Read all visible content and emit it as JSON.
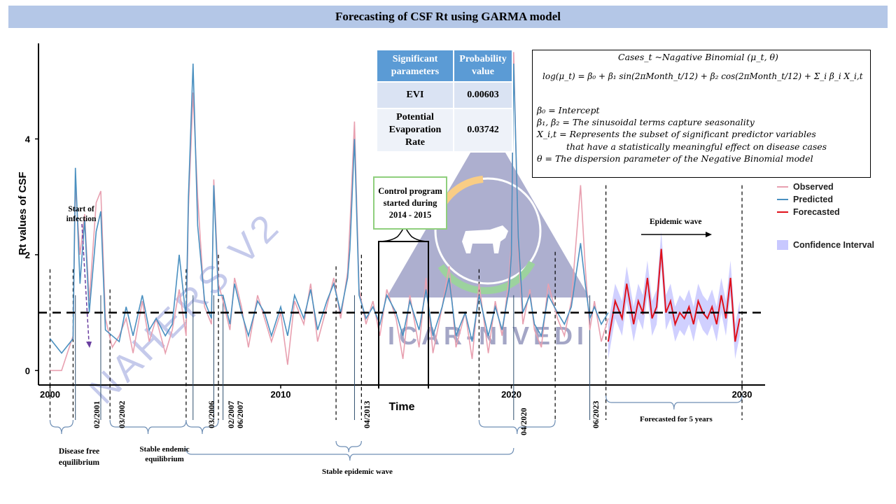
{
  "title": "Forecasting of CSF Rt using GARMA model",
  "table": {
    "headers": [
      "Significant parameters",
      "Probability value"
    ],
    "rows": [
      {
        "param": "EVI",
        "p": "0.00603"
      },
      {
        "param": "Potential Evaporation Rate",
        "p": "0.03742"
      }
    ]
  },
  "formula": {
    "line1": "Cases_t ~Nagative Binomial (μ_t, θ)",
    "line2": "log(μ_t) = β₀ + β₁ sin(2πMonth_t/12) + β₂ cos(2πMonth_t/12) + Σ_i β_i X_i,t",
    "def1": "β₀ = Intercept",
    "def2": "β₁, β₂ = The sinusoidal terms capture seasonality",
    "def3a": "X_i,t = Represents the subset of significant predictor variables",
    "def3b": "that have a statistically meaningful effect on disease cases",
    "def4": "θ = The dispersion parameter of the Negative Binomial model"
  },
  "legend": {
    "observed": "Observed",
    "predicted": "Predicted",
    "forecasted": "Forecasted",
    "ci": "Confidence Interval"
  },
  "colors": {
    "observed": "#e8a0b0",
    "predicted": "#4a90c0",
    "forecasted": "#e0101a",
    "ci": "#c8c8ff",
    "title_bg": "#b4c7e7",
    "table_header": "#5b9bd5"
  },
  "annotations": {
    "control_program": "Control program started during 2014 - 2015",
    "start_infection": "Start of infection",
    "epidemic_wave": "Epidemic wave",
    "disease_free": "Disease free equilibrium",
    "stable_endemic": "Stable endemic equilibrium",
    "stable_epidemic": "Stable epidemic wave",
    "forecast_5y": "Forecasted for 5 years",
    "dates": [
      "02/2001",
      "03/2002",
      "03/2006",
      "02/2007",
      "06/2007",
      "04/2013",
      "04/2020",
      "06/2023"
    ]
  },
  "watermark": "NAHERS V2",
  "logo_text": "ICAR-NIVEDI",
  "chart_data": {
    "type": "line",
    "xlabel": "Time",
    "ylabel": "Rt values of CSF",
    "xlim": [
      1999.5,
      2031
    ],
    "ylim": [
      -0.25,
      5.65
    ],
    "x_ticks": [
      2000,
      2010,
      2020,
      2030
    ],
    "y_ticks": [
      0,
      2,
      4
    ],
    "reference_line": 1.0,
    "series": [
      {
        "name": "Observed",
        "x": [
          2000.0,
          2000.5,
          2001.0,
          2001.1,
          2001.3,
          2001.5,
          2001.7,
          2002.0,
          2002.2,
          2002.4,
          2002.7,
          2003.0,
          2003.3,
          2003.6,
          2004.0,
          2004.3,
          2004.6,
          2005.0,
          2005.3,
          2005.6,
          2005.9,
          2006.0,
          2006.2,
          2006.4,
          2006.7,
          2007.0,
          2007.1,
          2007.3,
          2007.5,
          2007.8,
          2008.0,
          2008.3,
          2008.6,
          2009.0,
          2009.3,
          2009.6,
          2010.0,
          2010.3,
          2010.6,
          2011.0,
          2011.3,
          2011.6,
          2012.0,
          2012.3,
          2012.6,
          2012.9,
          2013.0,
          2013.2,
          2013.4,
          2013.7,
          2014.0,
          2014.3,
          2014.6,
          2015.0,
          2015.3,
          2015.6,
          2016.0,
          2016.3,
          2016.6,
          2017.0,
          2017.3,
          2017.6,
          2018.0,
          2018.3,
          2018.6,
          2019.0,
          2019.3,
          2019.6,
          2019.9,
          2020.0,
          2020.1,
          2020.3,
          2020.5,
          2020.8,
          2021.0,
          2021.3,
          2021.6,
          2022.0,
          2022.3,
          2022.6,
          2023.0,
          2023.2,
          2023.4,
          2023.6,
          2023.9,
          2024.2
        ],
        "values": [
          0.0,
          0.0,
          0.6,
          3.2,
          2.0,
          2.7,
          1.2,
          2.9,
          3.1,
          0.9,
          0.4,
          0.6,
          0.9,
          0.3,
          1.2,
          0.5,
          0.9,
          0.3,
          0.7,
          1.4,
          0.6,
          2.8,
          4.8,
          3.0,
          1.1,
          0.8,
          3.3,
          1.5,
          1.2,
          0.7,
          1.6,
          1.1,
          0.4,
          1.3,
          0.9,
          0.5,
          1.0,
          0.1,
          1.2,
          0.8,
          1.5,
          0.5,
          1.1,
          1.6,
          0.9,
          1.7,
          2.5,
          4.3,
          1.4,
          0.8,
          1.2,
          0.6,
          1.4,
          0.9,
          0.2,
          1.3,
          0.4,
          1.6,
          0.3,
          1.1,
          1.8,
          0.4,
          1.0,
          0.2,
          1.5,
          0.3,
          1.2,
          0.6,
          1.6,
          2.2,
          5.5,
          2.1,
          0.8,
          1.4,
          0.7,
          0.4,
          1.5,
          0.9,
          0.6,
          1.2,
          3.2,
          1.8,
          0.7,
          1.2,
          0.5,
          0.9
        ]
      },
      {
        "name": "Predicted",
        "x": [
          2000.0,
          2000.5,
          2001.0,
          2001.1,
          2001.3,
          2001.5,
          2001.7,
          2002.0,
          2002.2,
          2002.4,
          2002.7,
          2003.0,
          2003.3,
          2003.6,
          2004.0,
          2004.3,
          2004.6,
          2005.0,
          2005.3,
          2005.6,
          2005.9,
          2006.0,
          2006.2,
          2006.4,
          2006.7,
          2007.0,
          2007.1,
          2007.3,
          2007.5,
          2007.8,
          2008.0,
          2008.3,
          2008.6,
          2009.0,
          2009.3,
          2009.6,
          2010.0,
          2010.3,
          2010.6,
          2011.0,
          2011.3,
          2011.6,
          2012.0,
          2012.3,
          2012.6,
          2012.9,
          2013.0,
          2013.2,
          2013.4,
          2013.7,
          2014.0,
          2014.3,
          2014.6,
          2015.0,
          2015.3,
          2015.6,
          2016.0,
          2016.3,
          2016.6,
          2017.0,
          2017.3,
          2017.6,
          2018.0,
          2018.3,
          2018.6,
          2019.0,
          2019.3,
          2019.6,
          2019.9,
          2020.0,
          2020.1,
          2020.3,
          2020.5,
          2020.8,
          2021.0,
          2021.3,
          2021.6,
          2022.0,
          2022.3,
          2022.6,
          2023.0,
          2023.2,
          2023.4,
          2023.6,
          2023.9,
          2024.2
        ],
        "values": [
          0.55,
          0.3,
          0.55,
          3.5,
          1.5,
          2.6,
          1.0,
          2.4,
          2.75,
          0.7,
          0.6,
          0.5,
          1.1,
          0.6,
          1.3,
          0.7,
          0.9,
          0.6,
          0.8,
          2.0,
          0.9,
          3.0,
          5.3,
          2.5,
          1.2,
          0.9,
          3.2,
          1.3,
          1.3,
          0.8,
          1.5,
          1.0,
          0.6,
          1.2,
          1.0,
          0.6,
          1.1,
          0.6,
          1.3,
          0.9,
          1.4,
          0.7,
          1.2,
          1.5,
          1.0,
          1.6,
          2.1,
          4.0,
          1.3,
          0.9,
          1.1,
          0.8,
          1.3,
          1.0,
          0.6,
          1.2,
          0.7,
          1.4,
          0.6,
          1.1,
          1.6,
          0.6,
          1.0,
          0.5,
          1.3,
          0.6,
          1.1,
          0.7,
          1.4,
          2.0,
          5.3,
          2.3,
          1.0,
          1.3,
          0.8,
          0.6,
          1.3,
          1.0,
          0.8,
          1.1,
          2.2,
          1.5,
          0.9,
          1.1,
          0.8,
          1.0
        ]
      },
      {
        "name": "Forecasted",
        "x": [
          2024.2,
          2024.5,
          2024.8,
          2025.0,
          2025.3,
          2025.5,
          2025.7,
          2025.9,
          2026.1,
          2026.3,
          2026.5,
          2026.7,
          2026.9,
          2027.1,
          2027.3,
          2027.5,
          2027.7,
          2027.9,
          2028.1,
          2028.3,
          2028.5,
          2028.7,
          2028.9,
          2029.1,
          2029.3,
          2029.5,
          2029.7,
          2029.9
        ],
        "values": [
          0.5,
          1.2,
          0.9,
          1.5,
          0.8,
          1.2,
          1.0,
          1.6,
          0.9,
          1.1,
          2.1,
          1.0,
          1.2,
          0.8,
          1.0,
          0.9,
          1.1,
          0.8,
          1.2,
          1.0,
          0.9,
          1.1,
          0.8,
          1.3,
          0.9,
          1.6,
          0.5,
          0.9
        ]
      }
    ]
  }
}
